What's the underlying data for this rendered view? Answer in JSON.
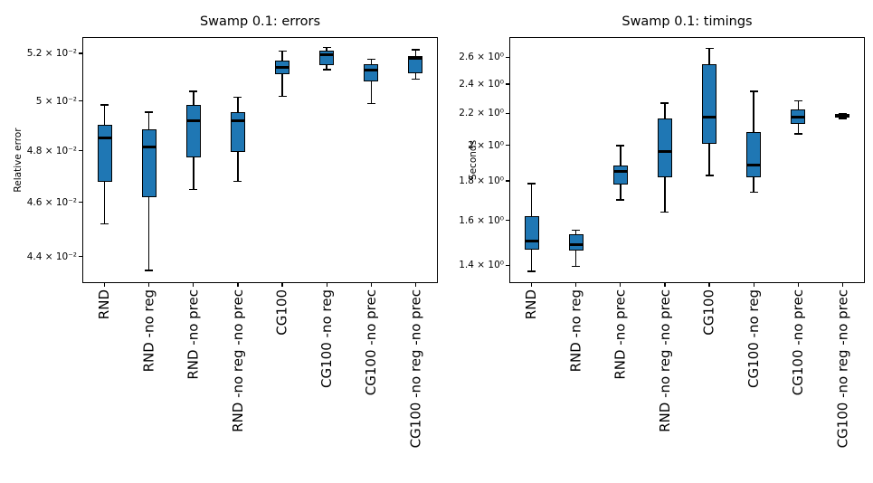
{
  "figure": {
    "background": "#ffffff",
    "box_fill": "#1f77b4",
    "line_color": "#000000"
  },
  "chart_data": [
    {
      "type": "boxplot",
      "title": "Swamp 0.1: errors",
      "xlabel": "",
      "ylabel": "Relative error",
      "yscale": "log",
      "ylim": [
        0.04305,
        0.0527
      ],
      "grid": false,
      "legend": null,
      "yticks": [
        {
          "value": 0.052,
          "label": "5.2 × 10⁻²"
        },
        {
          "value": 0.05,
          "label": "5 × 10⁻²"
        },
        {
          "value": 0.048,
          "label": "4.8 × 10⁻²"
        },
        {
          "value": 0.046,
          "label": "4.6 × 10⁻²"
        },
        {
          "value": 0.044,
          "label": "4.4 × 10⁻²"
        }
      ],
      "categories": [
        "RND",
        "RND -no reg",
        "RND -no prec",
        "RND -no reg -no prec",
        "CG100",
        "CG100 -no reg",
        "CG100 -no prec",
        "CG100 -no reg -no prec"
      ],
      "boxes": [
        {
          "category": "RND",
          "whislo": 0.0452,
          "q1": 0.0468,
          "med": 0.0485,
          "q3": 0.04905,
          "whishi": 0.04985
        },
        {
          "category": "RND -no reg",
          "whislo": 0.0435,
          "q1": 0.0462,
          "med": 0.04815,
          "q3": 0.04885,
          "whishi": 0.04955
        },
        {
          "category": "RND -no prec",
          "whislo": 0.0465,
          "q1": 0.04775,
          "med": 0.0492,
          "q3": 0.04985,
          "whishi": 0.0504
        },
        {
          "category": "RND -no reg -no prec",
          "whislo": 0.0468,
          "q1": 0.04795,
          "med": 0.0492,
          "q3": 0.04955,
          "whishi": 0.05015
        },
        {
          "category": "CG100",
          "whislo": 0.0502,
          "q1": 0.0511,
          "med": 0.0514,
          "q3": 0.0517,
          "whishi": 0.0521
        },
        {
          "category": "CG100 -no reg",
          "whislo": 0.0513,
          "q1": 0.0515,
          "med": 0.05195,
          "q3": 0.0521,
          "whishi": 0.05225
        },
        {
          "category": "CG100 -no prec",
          "whislo": 0.0499,
          "q1": 0.0508,
          "med": 0.0513,
          "q3": 0.05155,
          "whishi": 0.05175
        },
        {
          "category": "CG100 -no reg -no prec",
          "whislo": 0.0509,
          "q1": 0.05115,
          "med": 0.0518,
          "q3": 0.0519,
          "whishi": 0.05215
        }
      ]
    },
    {
      "type": "boxplot",
      "title": "Swamp 0.1: timings",
      "xlabel": "",
      "ylabel": "Seconds",
      "yscale": "log",
      "ylim": [
        1.328,
        2.761
      ],
      "grid": false,
      "legend": null,
      "yticks": [
        {
          "value": 2.6,
          "label": "2.6 × 10⁰"
        },
        {
          "value": 2.4,
          "label": "2.4 × 10⁰"
        },
        {
          "value": 2.2,
          "label": "2.2 × 10⁰"
        },
        {
          "value": 2.0,
          "label": "2 × 10⁰"
        },
        {
          "value": 1.8,
          "label": "1.8 × 10⁰"
        },
        {
          "value": 1.6,
          "label": "1.6 × 10⁰"
        },
        {
          "value": 1.4,
          "label": "1.4 × 10⁰"
        }
      ],
      "categories": [
        "RND",
        "RND -no reg",
        "RND -no prec",
        "RND -no reg -no prec",
        "CG100",
        "CG100 -no reg",
        "CG100 -no prec",
        "CG100 -no reg -no prec"
      ],
      "boxes": [
        {
          "category": "RND",
          "whislo": 1.375,
          "q1": 1.468,
          "med": 1.505,
          "q3": 1.62,
          "whishi": 1.785
        },
        {
          "category": "RND -no reg",
          "whislo": 1.395,
          "q1": 1.462,
          "med": 1.49,
          "q3": 1.535,
          "whishi": 1.555
        },
        {
          "category": "RND -no prec",
          "whislo": 1.7,
          "q1": 1.78,
          "med": 1.85,
          "q3": 1.885,
          "whishi": 2.0
        },
        {
          "category": "RND -no reg -no prec",
          "whislo": 1.64,
          "q1": 1.82,
          "med": 1.965,
          "q3": 2.17,
          "whishi": 2.27
        },
        {
          "category": "CG100",
          "whislo": 1.83,
          "q1": 2.01,
          "med": 2.175,
          "q3": 2.545,
          "whishi": 2.67
        },
        {
          "category": "CG100 -no reg",
          "whislo": 1.74,
          "q1": 1.82,
          "med": 1.885,
          "q3": 2.08,
          "whishi": 2.35
        },
        {
          "category": "CG100 -no prec",
          "whislo": 2.07,
          "q1": 2.13,
          "med": 2.175,
          "q3": 2.225,
          "whishi": 2.285
        },
        {
          "category": "CG100 -no reg -no prec",
          "whislo": 2.168,
          "q1": 2.175,
          "med": 2.185,
          "q3": 2.195,
          "whishi": 2.2
        }
      ]
    }
  ]
}
